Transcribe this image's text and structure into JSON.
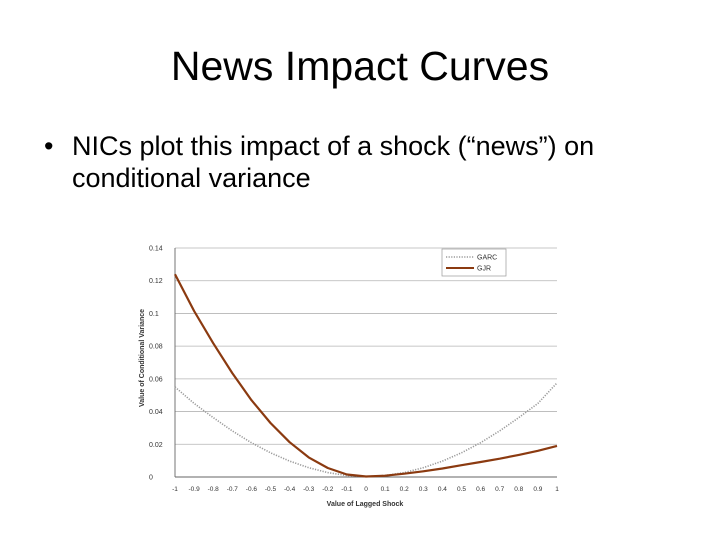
{
  "slide": {
    "title": "News Impact Curves",
    "bullet_symbol": "•",
    "bullet": "NICs plot this impact of a shock (“news”) on conditional variance"
  },
  "chart_data": {
    "type": "line",
    "xlabel": "Value of Lagged Shock",
    "ylabel": "Value of Conditional Variance",
    "xlim": [
      -1,
      1
    ],
    "ylim": [
      0,
      0.14
    ],
    "x_ticks": [
      "-1",
      "-0.9",
      "-0.8",
      "-0.7",
      "-0.6",
      "-0.5",
      "-0.4",
      "-0.3",
      "-0.2",
      "-0.1",
      "0",
      "0.1",
      "0.2",
      "0.3",
      "0.4",
      "0.5",
      "0.6",
      "0.7",
      "0.8",
      "0.9",
      "1"
    ],
    "y_ticks": [
      "0",
      "0.02",
      "0.04",
      "0.06",
      "0.08",
      "0.1",
      "0.12",
      "0.14"
    ],
    "x": [
      -1,
      -0.9,
      -0.8,
      -0.7,
      -0.6,
      -0.5,
      -0.4,
      -0.3,
      -0.2,
      -0.1,
      0,
      0.1,
      0.2,
      0.3,
      0.4,
      0.5,
      0.6,
      0.7,
      0.8,
      0.9,
      1
    ],
    "series": [
      {
        "name": "GARC",
        "color": "#9a9a9a",
        "style": "dotted",
        "values": [
          0.055,
          0.045,
          0.0363,
          0.0282,
          0.021,
          0.0148,
          0.0097,
          0.0057,
          0.0027,
          0.0009,
          0.0003,
          0.0009,
          0.0027,
          0.0057,
          0.0097,
          0.0148,
          0.021,
          0.0282,
          0.0363,
          0.045,
          0.0575
        ]
      },
      {
        "name": "GJR",
        "color": "#8b3a10",
        "style": "solid",
        "values": [
          0.124,
          0.1015,
          0.0818,
          0.0635,
          0.047,
          0.033,
          0.0213,
          0.012,
          0.0055,
          0.0015,
          0.0003,
          0.0008,
          0.002,
          0.0035,
          0.0052,
          0.0072,
          0.0092,
          0.0112,
          0.0135,
          0.016,
          0.019
        ]
      }
    ],
    "grid": "horizontal",
    "legend_position": "top-right"
  }
}
